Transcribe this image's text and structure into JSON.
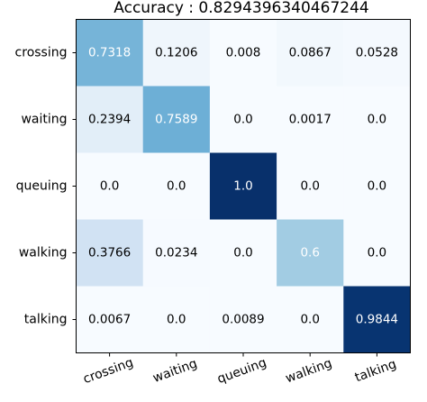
{
  "chart_data": {
    "type": "heatmap",
    "title": "Accuracy :  0.8294396340467244",
    "x_categories": [
      "crossing",
      "waiting",
      "queuing",
      "walking",
      "talking"
    ],
    "y_categories": [
      "crossing",
      "waiting",
      "queuing",
      "walking",
      "talking"
    ],
    "values": [
      [
        0.7318,
        0.1206,
        0.008,
        0.0867,
        0.0528
      ],
      [
        0.2394,
        0.7589,
        0.0,
        0.0017,
        0.0
      ],
      [
        0.0,
        0.0,
        1.0,
        0.0,
        0.0
      ],
      [
        0.3766,
        0.0234,
        0.0,
        0.6,
        0.0
      ],
      [
        0.0067,
        0.0,
        0.0089,
        0.0,
        0.9844
      ]
    ],
    "labels": [
      [
        "0.7318",
        "0.1206",
        "0.008",
        "0.0867",
        "0.0528"
      ],
      [
        "0.2394",
        "0.7589",
        "0.0",
        "0.0017",
        "0.0"
      ],
      [
        "0.0",
        "0.0",
        "1.0",
        "0.0",
        "0.0"
      ],
      [
        "0.3766",
        "0.0234",
        "0.0",
        "0.6",
        "0.0"
      ],
      [
        "0.0067",
        "0.0",
        "0.0089",
        "0.0",
        "0.9844"
      ]
    ],
    "colormap": "Blues",
    "grid": false,
    "x_tick_rotation_deg": 20
  }
}
